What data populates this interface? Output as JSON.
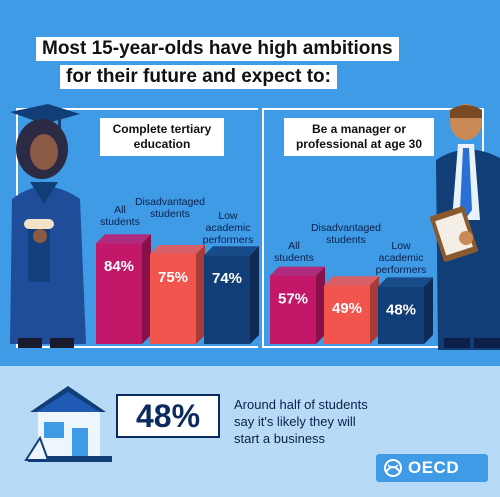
{
  "title": {
    "line1": "Most 15-year-olds have high ambitions",
    "line2": "for their future and expect to:"
  },
  "colors": {
    "background": "#3f9be6",
    "all_students": "#c3186a",
    "disadvantaged": "#f2554e",
    "low_performers": "#123e78",
    "bottom_band": "#b7dbf7"
  },
  "chart_data": [
    {
      "type": "bar",
      "title": "Complete tertiary education",
      "categories": [
        "All students",
        "Disadvantaged students",
        "Low academic performers"
      ],
      "values": [
        84,
        75,
        74
      ],
      "value_labels": [
        "84%",
        "75%",
        "74%"
      ],
      "unit": "%"
    },
    {
      "type": "bar",
      "title": "Be a manager or professional at age 30",
      "categories": [
        "All students",
        "Disadvantaged students",
        "Low academic performers"
      ],
      "values": [
        57,
        49,
        48
      ],
      "value_labels": [
        "57%",
        "49%",
        "48%"
      ],
      "unit": "%"
    }
  ],
  "left_panel": {
    "label_line1": "Complete tertiary",
    "label_line2": "education",
    "cat1": [
      "All",
      "students"
    ],
    "cat2": [
      "Disadvantaged",
      "students"
    ],
    "cat3": [
      "Low",
      "academic",
      "performers"
    ]
  },
  "right_panel": {
    "label_line1": "Be a manager or",
    "label_line2": "professional at age 30",
    "cat1": [
      "All",
      "students"
    ],
    "cat2": [
      "Disadvantaged",
      "students"
    ],
    "cat3": [
      "Low",
      "academic",
      "performers"
    ]
  },
  "bottom": {
    "stat": "48%",
    "stat_value": 48,
    "caption_line1": "Around half of students",
    "caption_line2": "say it's likely they will",
    "caption_line3": "start a business"
  },
  "logo": {
    "text": "OECD",
    "icon": "oecd-logo-icon"
  },
  "illustrations": [
    "graduate-illustration",
    "manager-illustration",
    "house-icon"
  ]
}
